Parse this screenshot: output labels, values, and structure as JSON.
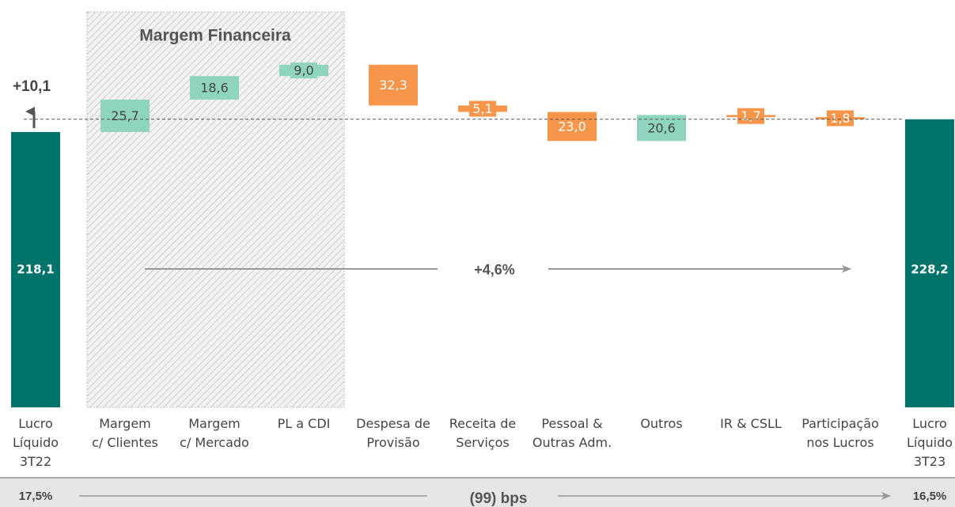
{
  "chart_data": {
    "type": "waterfall",
    "categories": [
      "Lucro\nLíquido\n3T22",
      "Margem\nc/ Clientes",
      "Margem\nc/ Mercado",
      "PL a CDI",
      "Despesa de\nProvisão",
      "Receita de\nServiços",
      "Pessoal &\nOutras Adm.",
      "Outros",
      "IR & CSLL",
      "Participação\nnos Lucros",
      "Lucro\nLíquido\n3T23"
    ],
    "values": [
      218.1,
      25.7,
      18.6,
      9.0,
      -32.3,
      -5.1,
      -23.0,
      20.6,
      -1.7,
      -1.8,
      228.2
    ],
    "value_labels": [
      "218,1",
      "25,7",
      "18,6",
      "9,0",
      "32,3",
      "5,1",
      "23,0",
      "20,6",
      "1,7",
      "1,8",
      "228,2"
    ],
    "measure": [
      "total",
      "relative",
      "relative",
      "relative",
      "relative",
      "relative",
      "relative",
      "relative",
      "relative",
      "relative",
      "total"
    ],
    "colors": {
      "total": "#00736b",
      "increase": "#8fd4be",
      "decrease": "#f7964a"
    },
    "annotations": {
      "group": "Margem Financeira",
      "net_change": "+10,1",
      "growth": "+4,6%"
    },
    "footer": {
      "start": "17,5%",
      "change": "(99) bps",
      "end": "16,5%"
    }
  }
}
